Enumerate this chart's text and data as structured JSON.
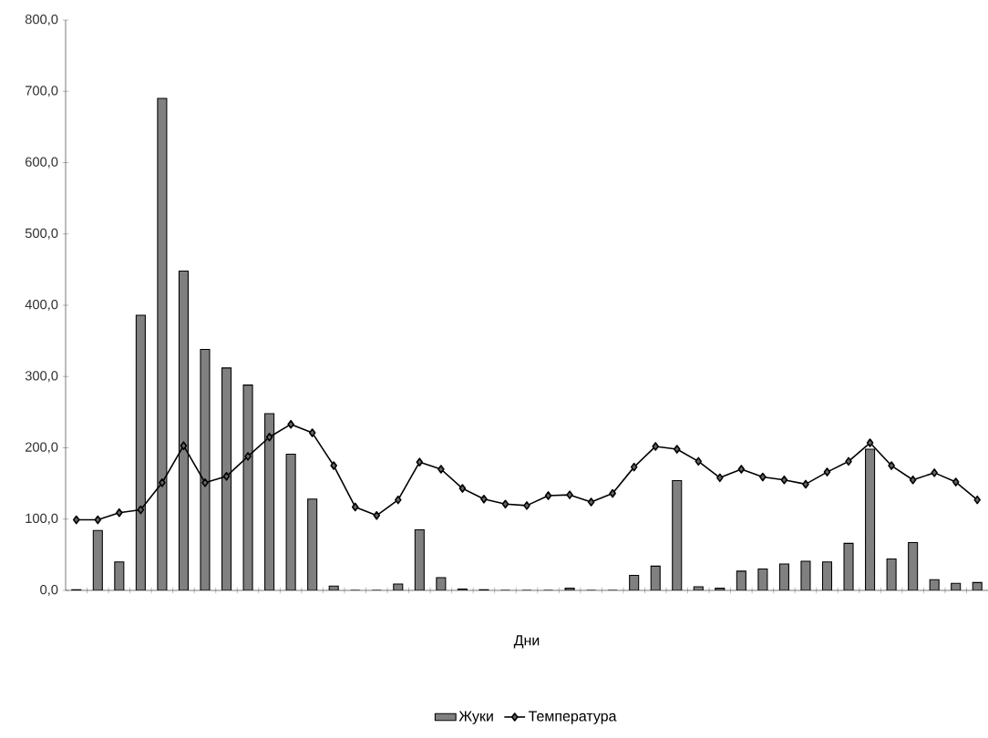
{
  "chart_data": {
    "type": "bar",
    "xlabel": "Дни",
    "categories": [
      null,
      null,
      null,
      null,
      null,
      null,
      null,
      null,
      null,
      null,
      null,
      null,
      null,
      null,
      null,
      null,
      null,
      null,
      null,
      null,
      null,
      null,
      null,
      null,
      null,
      null,
      null,
      null,
      null,
      null,
      null,
      null,
      null,
      null,
      null,
      null,
      null,
      null,
      null,
      null,
      null,
      null,
      null
    ],
    "series": [
      {
        "name": "Жуки",
        "color": "#808080",
        "values": [
          1,
          84,
          40,
          386,
          690,
          448,
          338,
          312,
          288,
          248,
          191,
          128,
          6,
          0,
          0,
          9,
          85,
          18,
          2,
          1,
          0,
          0,
          0,
          3,
          0,
          0,
          21,
          34,
          154,
          5,
          3,
          27,
          30,
          37,
          41,
          40,
          66,
          198,
          44,
          67,
          15,
          10,
          11
        ]
      },
      {
        "name": "Температура",
        "type": "line",
        "color": "#000000",
        "marker": "diamond",
        "values": [
          99,
          99,
          109,
          113,
          151,
          203,
          151,
          160,
          188,
          215,
          233,
          221,
          175,
          117,
          105,
          127,
          180,
          170,
          143,
          128,
          121,
          119,
          133,
          134,
          124,
          136,
          173,
          202,
          198,
          181,
          158,
          170,
          159,
          155,
          149,
          166,
          181,
          207,
          175,
          155,
          165,
          152,
          127
        ]
      }
    ],
    "ylim": [
      0,
      800
    ],
    "yticks": [
      {
        "value": 0,
        "label": "0,0"
      },
      {
        "value": 100,
        "label": "100,0"
      },
      {
        "value": 200,
        "label": "200,0"
      },
      {
        "value": 300,
        "label": "300,0"
      },
      {
        "value": 400,
        "label": "400,0"
      },
      {
        "value": 500,
        "label": "500,0"
      },
      {
        "value": 600,
        "label": "600,0"
      },
      {
        "value": 700,
        "label": "700,0"
      },
      {
        "value": 800,
        "label": "800,0"
      }
    ],
    "legend": "bottom",
    "tick_labels": "y"
  }
}
